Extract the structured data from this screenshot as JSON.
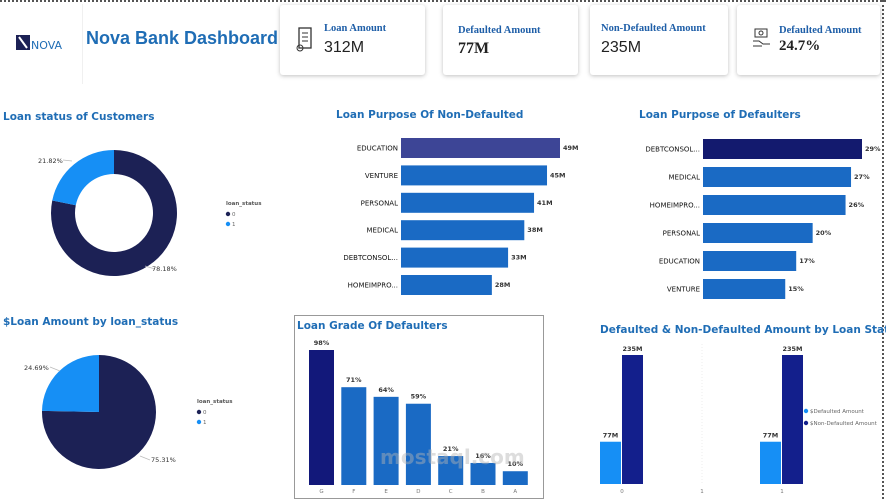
{
  "header": {
    "logo_text": "NOVA",
    "title": "Nova Bank Dashboard"
  },
  "kpis": [
    {
      "label": "Loan Amount",
      "value": "312M",
      "icon": "loan-document-icon"
    },
    {
      "label": "Defaulted Amount",
      "value": "77M"
    },
    {
      "label": "Non-Defaulted Amount",
      "value": "235M"
    },
    {
      "label": "Defaulted Amount",
      "value": "24.7%",
      "icon": "money-hand-icon"
    }
  ],
  "colors": {
    "dark_navy": "#1c2155",
    "light_blue": "#168ff5",
    "mid_blue": "#1a6ac4",
    "deep_blue": "#131f8c",
    "title_blue": "#1f6db5"
  },
  "watermark": "mostaql.com",
  "chart_data": [
    {
      "id": "loan-status-donut",
      "type": "pie",
      "donut": true,
      "title": "Loan status of Customers",
      "legend_title": "loan_status",
      "legend_position": "right",
      "categories": [
        "0",
        "1"
      ],
      "values": [
        78.18,
        21.82
      ],
      "labels": [
        "78.18%",
        "21.82%"
      ]
    },
    {
      "id": "purpose-non-defaulted",
      "type": "bar",
      "orientation": "horizontal",
      "title": "Loan Purpose Of Non-Defaulted",
      "categories": [
        "EDUCATION",
        "VENTURE",
        "PERSONAL",
        "MEDICAL",
        "DEBTCONSOL...",
        "HOMEIMPRO..."
      ],
      "values": [
        49,
        45,
        41,
        38,
        33,
        28
      ],
      "labels": [
        "49M",
        "45M",
        "41M",
        "38M",
        "33M",
        "28M"
      ],
      "unit": "M"
    },
    {
      "id": "purpose-defaulters",
      "type": "bar",
      "orientation": "horizontal",
      "title": "Loan Purpose of Defaulters",
      "categories": [
        "DEBTCONSOL...",
        "MEDICAL",
        "HOMEIMPRO...",
        "PERSONAL",
        "EDUCATION",
        "VENTURE"
      ],
      "values": [
        29,
        27,
        26,
        20,
        17,
        15
      ],
      "labels": [
        "29%",
        "27%",
        "26%",
        "20%",
        "17%",
        "15%"
      ],
      "unit": "%"
    },
    {
      "id": "loan-amount-pie",
      "type": "pie",
      "donut": false,
      "title": "$Loan Amount by loan_status",
      "legend_title": "loan_status",
      "legend_position": "right",
      "categories": [
        "0",
        "1"
      ],
      "values": [
        75.31,
        24.69
      ],
      "labels": [
        "75.31%",
        "24.69%"
      ]
    },
    {
      "id": "grade-defaulters",
      "type": "bar",
      "orientation": "vertical",
      "title": "Loan Grade Of Defaulters",
      "categories": [
        "G",
        "F",
        "E",
        "D",
        "C",
        "B",
        "A"
      ],
      "values": [
        98,
        71,
        64,
        59,
        21,
        16,
        10
      ],
      "labels": [
        "98%",
        "71%",
        "64%",
        "59%",
        "21%",
        "16%",
        "10%"
      ],
      "unit": "%"
    },
    {
      "id": "amount-by-status",
      "type": "bar",
      "orientation": "vertical",
      "title": "Defaulted & Non-Defaulted Amount by Loan Status",
      "categories": [
        "0",
        "1",
        "1"
      ],
      "legend_position": "right",
      "series": [
        {
          "name": "$Defaulted Amount",
          "values": [
            77,
            null,
            77
          ],
          "labels": [
            "77M",
            "",
            "77M"
          ]
        },
        {
          "name": "$Non-Defaulted Amount",
          "values": [
            235,
            null,
            235
          ],
          "labels": [
            "235M",
            "",
            "235M"
          ]
        }
      ],
      "unit": "M"
    }
  ]
}
